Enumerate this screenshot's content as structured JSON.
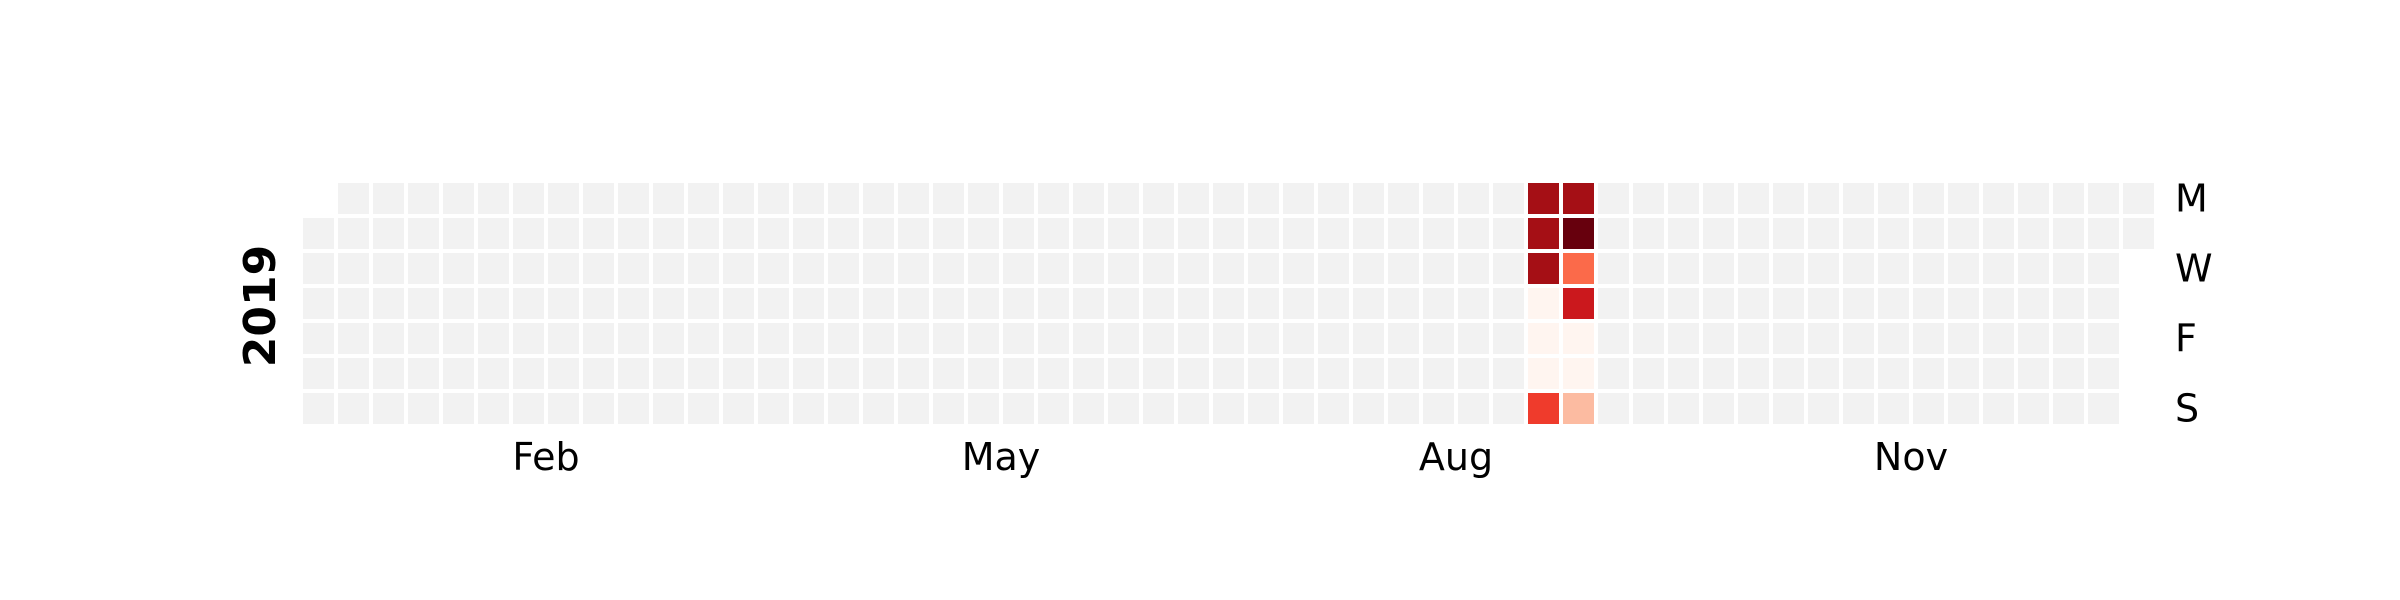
{
  "chart_data": {
    "type": "heatmap",
    "title": "",
    "year_label": "2019",
    "x_tick_labels": [
      "Feb",
      "May",
      "Aug",
      "Nov"
    ],
    "y_tick_labels": [
      "M",
      "W",
      "F",
      "S"
    ],
    "weeks": 53,
    "days_per_week": 7,
    "first_week_start_weekday": 1,
    "empty_color": "#f2f2f2",
    "colormap": [
      "#fff5f0",
      "#fee0d2",
      "#fcbba1",
      "#fc9272",
      "#fb6a4a",
      "#ef3b2c",
      "#cb181d",
      "#a50f15",
      "#67000d"
    ],
    "value_range": [
      0,
      1
    ],
    "cells": [
      {
        "week": 35,
        "day": 0,
        "value": 0.85
      },
      {
        "week": 35,
        "day": 1,
        "value": 0.92
      },
      {
        "week": 35,
        "day": 2,
        "value": 0.85
      },
      {
        "week": 35,
        "day": 3,
        "value": 0.05
      },
      {
        "week": 35,
        "day": 4,
        "value": 0.05
      },
      {
        "week": 35,
        "day": 5,
        "value": 0.05
      },
      {
        "week": 35,
        "day": 6,
        "value": 0.6
      },
      {
        "week": 36,
        "day": 0,
        "value": 0.85
      },
      {
        "week": 36,
        "day": 1,
        "value": 1.0
      },
      {
        "week": 36,
        "day": 2,
        "value": 0.5
      },
      {
        "week": 36,
        "day": 3,
        "value": 0.78
      },
      {
        "week": 36,
        "day": 4,
        "value": 0.05
      },
      {
        "week": 36,
        "day": 5,
        "value": 0.05
      },
      {
        "week": 36,
        "day": 6,
        "value": 0.2
      }
    ],
    "grid": false,
    "legend": "none"
  }
}
